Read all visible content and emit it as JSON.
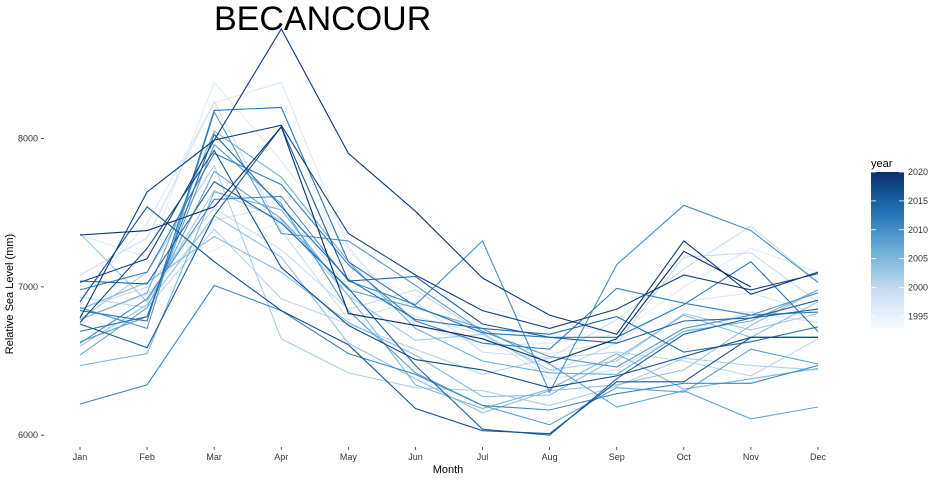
{
  "chart_data": {
    "type": "line",
    "title": "BECANCOUR",
    "xlabel": "Month",
    "ylabel": "Relative Sea Level (mm)",
    "categories": [
      "Jan",
      "Feb",
      "Mar",
      "Apr",
      "May",
      "Jun",
      "Jul",
      "Aug",
      "Sep",
      "Oct",
      "Nov",
      "Dec"
    ],
    "ylim": [
      5900,
      8800
    ],
    "yticks": [
      6000,
      7000,
      8000
    ],
    "yticklabels": [
      "6000",
      "7000",
      "8000"
    ],
    "grid": false,
    "legend": {
      "title": "year",
      "placement": "right",
      "min": 1993,
      "max": 2020,
      "ticks": [
        1995,
        2000,
        2005,
        2010,
        2015,
        2020
      ],
      "ticklabels": [
        "1995",
        "2000",
        "2005",
        "2010",
        "2015",
        "2020"
      ],
      "color_low": "#f7fbff",
      "color_high": "#08306b"
    },
    "series": [
      {
        "year": 1993,
        "values": [
          7000,
          7080,
          7250,
          7440,
          7130,
          6940,
          6870,
          6750,
          6700,
          6850,
          6830,
          6800
        ]
      },
      {
        "year": 1994,
        "values": [
          7350,
          7200,
          8380,
          7850,
          7250,
          6750,
          6600,
          6620,
          6680,
          7000,
          7260,
          7100
        ]
      },
      {
        "year": 1995,
        "values": [
          6920,
          7430,
          8240,
          8380,
          7270,
          6740,
          6620,
          6550,
          6630,
          6900,
          6960,
          6820
        ]
      },
      {
        "year": 1996,
        "values": [
          6780,
          6950,
          7450,
          7550,
          7000,
          6800,
          6680,
          6380,
          6440,
          6700,
          6830,
          6760
        ]
      },
      {
        "year": 1997,
        "values": [
          7080,
          7330,
          8250,
          7380,
          6780,
          6900,
          6560,
          6520,
          6780,
          7120,
          7410,
          7030
        ]
      },
      {
        "year": 1998,
        "values": [
          6850,
          7000,
          7530,
          7250,
          6850,
          6980,
          6690,
          6420,
          6620,
          7200,
          7230,
          6900
        ]
      },
      {
        "year": 1999,
        "values": [
          6930,
          6860,
          7390,
          6920,
          6750,
          6580,
          6410,
          6520,
          6560,
          6500,
          6400,
          6650
        ]
      },
      {
        "year": 2000,
        "values": [
          6780,
          7100,
          7820,
          6650,
          6420,
          6320,
          6300,
          6200,
          6330,
          6520,
          6470,
          6440
        ]
      },
      {
        "year": 2001,
        "values": [
          7360,
          6900,
          7650,
          7450,
          6940,
          6640,
          6680,
          6440,
          6500,
          6820,
          6710,
          6820
        ]
      },
      {
        "year": 2002,
        "values": [
          6600,
          6880,
          7480,
          7200,
          6620,
          6380,
          6150,
          6300,
          6340,
          6440,
          6740,
          6980
        ]
      },
      {
        "year": 2003,
        "values": [
          6850,
          7030,
          7340,
          7100,
          6760,
          6540,
          6260,
          6270,
          6520,
          6810,
          6660,
          6900
        ]
      },
      {
        "year": 2004,
        "values": [
          6470,
          6550,
          7640,
          7520,
          6940,
          6340,
          6180,
          6310,
          6550,
          6310,
          6380,
          6450
        ]
      },
      {
        "year": 2005,
        "values": [
          6780,
          6960,
          8050,
          7740,
          7170,
          6720,
          6500,
          6420,
          6410,
          6700,
          6770,
          6980
        ]
      },
      {
        "year": 2006,
        "values": [
          6540,
          6860,
          7780,
          7460,
          6980,
          6860,
          6720,
          6480,
          6190,
          6300,
          6110,
          6190
        ]
      },
      {
        "year": 2007,
        "values": [
          6630,
          6800,
          7960,
          7560,
          6840,
          6420,
          6200,
          6070,
          6320,
          6290,
          6580,
          6480
        ]
      },
      {
        "year": 2008,
        "values": [
          6860,
          6720,
          8180,
          7360,
          7310,
          7010,
          6700,
          6530,
          6460,
          6720,
          6810,
          6960
        ]
      },
      {
        "year": 2009,
        "values": [
          6620,
          6920,
          7590,
          7610,
          7040,
          6880,
          7310,
          6290,
          7150,
          7550,
          7380,
          7030
        ]
      },
      {
        "year": 2010,
        "values": [
          6210,
          6340,
          7010,
          6840,
          6550,
          6410,
          6200,
          6170,
          6280,
          6350,
          6350,
          6470
        ]
      },
      {
        "year": 2011,
        "values": [
          6980,
          7100,
          7900,
          7690,
          7150,
          6770,
          6620,
          6580,
          6990,
          6890,
          6810,
          6830
        ]
      },
      {
        "year": 2012,
        "values": [
          6840,
          6770,
          8190,
          8210,
          7170,
          6870,
          6690,
          6660,
          6660,
          6880,
          7170,
          6700
        ]
      },
      {
        "year": 2013,
        "values": [
          6700,
          6800,
          8030,
          7540,
          7050,
          6780,
          6720,
          6680,
          6800,
          6560,
          6630,
          6730
        ]
      },
      {
        "year": 2014,
        "values": [
          7040,
          7020,
          7710,
          7430,
          6990,
          6470,
          6040,
          6000,
          6380,
          6680,
          6790,
          6910
        ]
      },
      {
        "year": 2015,
        "values": [
          6750,
          6590,
          7480,
          8080,
          7040,
          7070,
          6750,
          6660,
          6620,
          6770,
          6790,
          6850
        ]
      },
      {
        "year": 2016,
        "values": [
          6900,
          7540,
          7170,
          6840,
          6610,
          6180,
          6030,
          6010,
          6360,
          6360,
          6660,
          6660
        ]
      },
      {
        "year": 2017,
        "values": [
          6760,
          7260,
          7920,
          7130,
          6740,
          6510,
          6440,
          6320,
          6400,
          6530,
          6660,
          6660
        ]
      },
      {
        "year": 2018,
        "values": [
          7030,
          7190,
          7990,
          8090,
          7360,
          7080,
          6840,
          6720,
          6850,
          7080,
          6980,
          7090
        ]
      },
      {
        "year": 2019,
        "values": [
          6790,
          7640,
          7990,
          8740,
          7900,
          7510,
          7060,
          6810,
          6680,
          7310,
          6950,
          7100
        ]
      },
      {
        "year": 2020,
        "values": [
          7350,
          7380,
          7540,
          8080,
          6820,
          6740,
          6650,
          6490,
          6650,
          7240,
          7000,
          null
        ]
      }
    ]
  }
}
